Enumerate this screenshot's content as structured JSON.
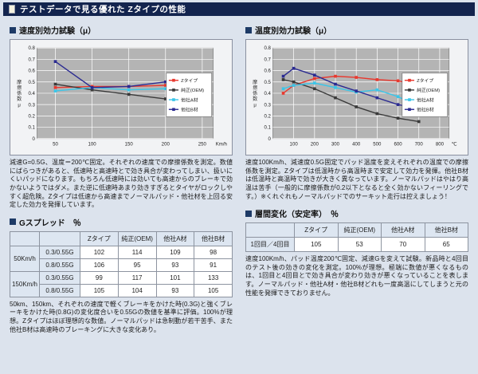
{
  "colors": {
    "page_bg": "#dce3ed",
    "titlebar_bg": "#13244e",
    "bullet": "#1d3a66",
    "accent_red": "#cc1111",
    "plot_bg": "#b4b4b4"
  },
  "header": {
    "title": "テストデータで見る優れた Zタイプの性能"
  },
  "sections": {
    "left_chart_heading": "速度別効力試験（μ）",
    "right_chart_heading": "温度別効力試験（μ）",
    "left_table_heading": "Gスプレッド　％",
    "right_table_heading": "層間変化（安定率）　％"
  },
  "notes": {
    "left_chart": "減速G=0.5G、温度＝200℃固定。それぞれの速度での摩擦係数を測定。数値にばらつきがあると、低速時と高速時とで効き具合が変わってしまい、扱いにくいパッドになります。もちろん低速時には効いても高速からのブレーキで効かないようではダメ。また逆に低速時あまり効きすぎるとタイヤがロックしやすく超危険。Zタイプは低速から高速までノーマルパッド・他社材を上回る安定した効力を発揮しています。",
    "right_chart": "速度100Km/h、減速度0.5G固定でパッド温度を変えそれぞれの温度での摩擦係数を測定。Zタイプは低温時から高温時まで安定して効力を発揮。他社B材は低温時と高温時で効きが大きく異なっています。ノーマルパッドはやはり高温は苦手（一般的に摩擦係数が0.2以下となると全く効かないフィーリングです。）※くれぐれもノーマルパッドでのサーキット走行は控えましょう！",
    "left_table": "50km、150km、それぞれの速度で軽くブレーキをかけた時(0.3G)と強くブレーキをかけた時(0.8G)の変化度合いを0.55Gの数値を基準に評価。100%が理想。Zタイプはほぼ理想的な数値。ノーマルパッドは急制動が若干苦手、また他社B材は高速時のブレーキングに大きな変化あり。",
    "right_table": "速度100Km/h、パッド温度200℃固定、減速Gを変えて試験。新品時と4回目のテスト後の効きの変化を測定。100%が理想。極端に数値が悪くなるものは、1回目と4回目とで効き具合が変わり効きが悪くなっていることを表します。ノーマルパッド・他社A材・他社B材どれも一度高温にしてしまうと元の性能を発揮できておりません。"
  },
  "tables": {
    "col_headers": [
      "Zタイプ",
      "純正(OEM)",
      "他社A材",
      "他社B材"
    ],
    "gspread": {
      "rows": [
        {
          "speed": "50Km/h",
          "cond": "0.3/0.55G",
          "values": [
            "102",
            "114",
            "109",
            "98"
          ]
        },
        {
          "cond": "0.8/0.55G",
          "values": [
            "106",
            "95",
            "93",
            "91"
          ]
        },
        {
          "speed": "150Km/h",
          "cond": "0.3/0.55G",
          "values": [
            "99",
            "117",
            "101",
            "133"
          ]
        },
        {
          "cond": "0.8/0.55G",
          "values": [
            "105",
            "104",
            "93",
            "105"
          ]
        }
      ]
    },
    "stability": {
      "rows": [
        {
          "label": "1回目／4回目",
          "values": [
            "105",
            "53",
            "70",
            "65"
          ]
        }
      ]
    }
  },
  "chart_data": [
    {
      "type": "line",
      "title": "速度別効力試験（μ）",
      "xlabel": "Km/h",
      "ylabel": "摩擦係数μ",
      "x": [
        50,
        100,
        150,
        200
      ],
      "xticks": [
        50,
        100,
        150,
        200,
        250
      ],
      "xlim": [
        25,
        265
      ],
      "yticks": [
        0,
        0.1,
        0.2,
        0.3,
        0.4,
        0.5,
        0.6,
        0.7,
        0.8
      ],
      "ylim": [
        0,
        0.8
      ],
      "grid": true,
      "legend_position": "right-inside",
      "series": [
        {
          "name": "Zタイプ",
          "color": "#e8392f",
          "values": [
            0.45,
            0.46,
            0.46,
            0.47
          ]
        },
        {
          "name": "純正(OEM)",
          "color": "#3a3a3a",
          "values": [
            0.48,
            0.43,
            0.39,
            0.35
          ]
        },
        {
          "name": "他社A材",
          "color": "#3bc5e8",
          "values": [
            0.42,
            0.45,
            0.43,
            0.44
          ]
        },
        {
          "name": "他社B材",
          "color": "#2b2b91",
          "values": [
            0.68,
            0.45,
            0.46,
            0.5
          ]
        }
      ]
    },
    {
      "type": "line",
      "title": "温度別効力試験（μ）",
      "xlabel": "℃",
      "ylabel": "摩擦係数μ",
      "x": [
        50,
        100,
        200,
        300,
        400,
        500,
        600,
        700
      ],
      "xticks": [
        100,
        200,
        300,
        400,
        500,
        600,
        700,
        800
      ],
      "xlim": [
        0,
        845
      ],
      "yticks": [
        0,
        0.1,
        0.2,
        0.3,
        0.4,
        0.5,
        0.6,
        0.7,
        0.8
      ],
      "ylim": [
        0,
        0.8
      ],
      "grid": true,
      "legend_position": "right-inside",
      "series": [
        {
          "name": "Zタイプ",
          "color": "#e8392f",
          "values": [
            0.4,
            0.47,
            0.53,
            0.55,
            0.54,
            0.52,
            0.51,
            0.47
          ]
        },
        {
          "name": "純正(OEM)",
          "color": "#3a3a3a",
          "values": [
            0.52,
            0.5,
            0.44,
            0.36,
            0.28,
            0.22,
            0.18,
            0.15
          ]
        },
        {
          "name": "他社A材",
          "color": "#3bc5e8",
          "values": [
            0.44,
            0.47,
            0.49,
            0.45,
            0.41,
            0.43,
            0.37,
            0.28
          ]
        },
        {
          "name": "他社B材",
          "color": "#2b2b91",
          "values": [
            0.55,
            0.62,
            0.56,
            0.48,
            0.42,
            0.36,
            0.3,
            0.27
          ]
        }
      ]
    }
  ]
}
